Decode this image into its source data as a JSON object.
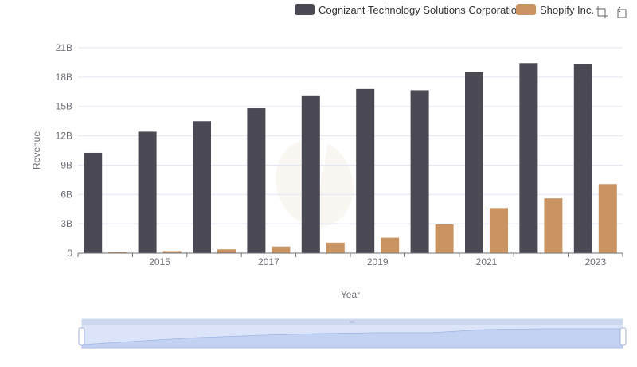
{
  "chart_data": {
    "type": "bar",
    "x": [
      2014,
      2015,
      2016,
      2017,
      2018,
      2019,
      2020,
      2021,
      2022,
      2023
    ],
    "x_tick_labels": [
      "2015",
      "2017",
      "2019",
      "2021",
      "2023"
    ],
    "xlabel": "Year",
    "ylabel": "Revenue",
    "ylim": [
      0,
      21
    ],
    "y_tick_labels": [
      "0",
      "3B",
      "6B",
      "9B",
      "12B",
      "15B",
      "18B",
      "21B"
    ],
    "unit": "B",
    "grid": "horizontal",
    "legend_position": "top-right",
    "series": [
      {
        "name": "Cognizant Technology Solutions Corporation",
        "color": "#4a4954",
        "values": [
          10.26,
          12.42,
          13.49,
          14.81,
          16.13,
          16.78,
          16.65,
          18.51,
          19.43,
          19.35
        ]
      },
      {
        "name": "Shopify Inc.",
        "color": "#c99462",
        "values": [
          0.105,
          0.205,
          0.389,
          0.673,
          1.073,
          1.578,
          2.929,
          4.612,
          5.6,
          7.06
        ]
      }
    ]
  },
  "toolbar": {
    "zoom_icon": "zoom-region-icon",
    "restore_icon": "restore-icon"
  },
  "datazoom": {
    "label": "datazoom-slider"
  }
}
